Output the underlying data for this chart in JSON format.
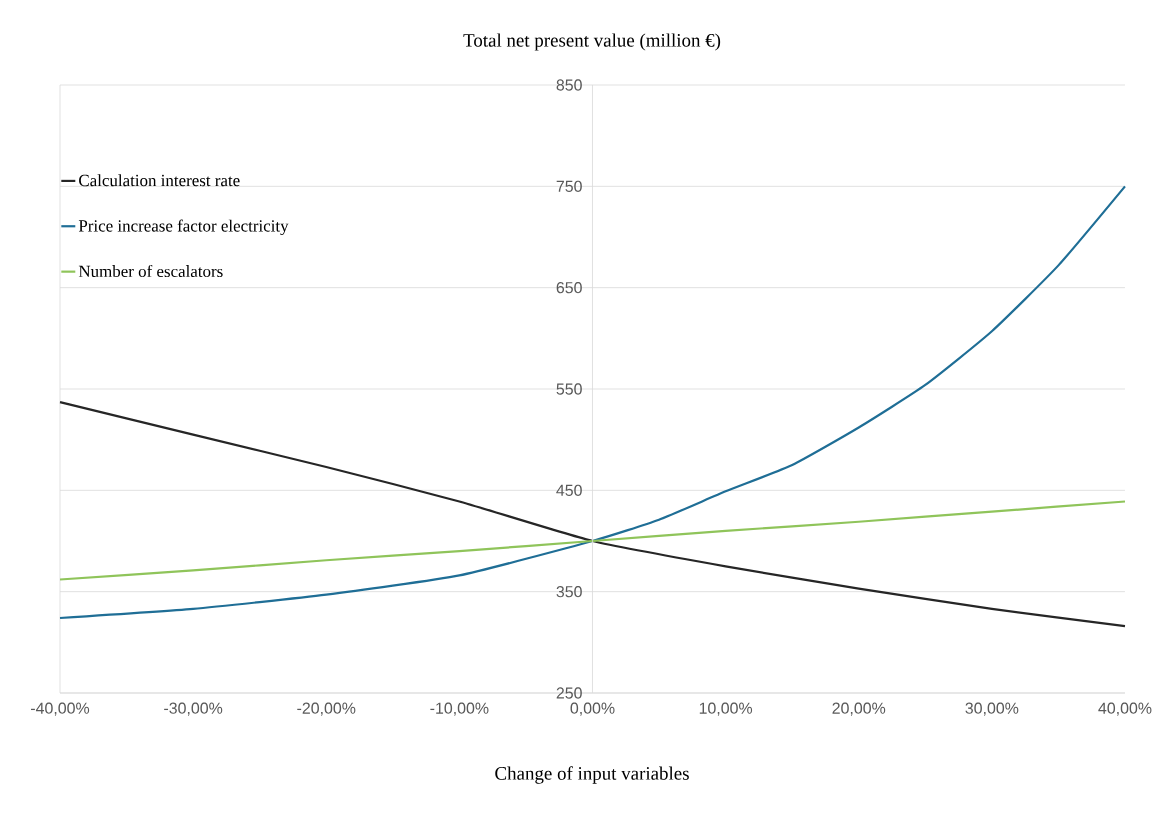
{
  "chart_data": {
    "type": "line",
    "title": "Total net present value (million €)",
    "xlabel": "Change of input variables",
    "x": [
      -40,
      -30,
      -20,
      -10,
      0,
      10,
      20,
      30,
      40
    ],
    "series": [
      {
        "name": "Calculation interest rate",
        "color": "#262626",
        "values": [
          537,
          505,
          473,
          439,
          400,
          375,
          353,
          333,
          316
        ]
      },
      {
        "name": "Price increase factor electricity",
        "color": "#1f6e96",
        "x": [
          -40,
          -30,
          -20,
          -10,
          0,
          5,
          10,
          15,
          20,
          25,
          30,
          35,
          40
        ],
        "values": [
          324,
          333,
          347,
          366,
          400,
          421,
          449,
          475,
          512,
          554,
          607,
          672,
          750
        ]
      },
      {
        "name": "Number of escalators",
        "color": "#8fc45a",
        "values": [
          362,
          371,
          381,
          390,
          400,
          410,
          419,
          429,
          439
        ]
      }
    ],
    "xlim": [
      -40,
      40
    ],
    "ylim": [
      250,
      850
    ],
    "xticks": [
      {
        "value": -40,
        "label": "-40,00%"
      },
      {
        "value": -30,
        "label": "-30,00%"
      },
      {
        "value": -20,
        "label": "-20,00%"
      },
      {
        "value": -10,
        "label": "-10,00%"
      },
      {
        "value": 0,
        "label": "0,00%"
      },
      {
        "value": 10,
        "label": "10,00%"
      },
      {
        "value": 20,
        "label": "20,00%"
      },
      {
        "value": 30,
        "label": "30,00%"
      },
      {
        "value": 40,
        "label": "40,00%"
      }
    ],
    "yticks": [
      250,
      350,
      450,
      550,
      650,
      750,
      850
    ],
    "grid": "y",
    "legend": "top left",
    "marker": "none",
    "line_style": "solid"
  }
}
